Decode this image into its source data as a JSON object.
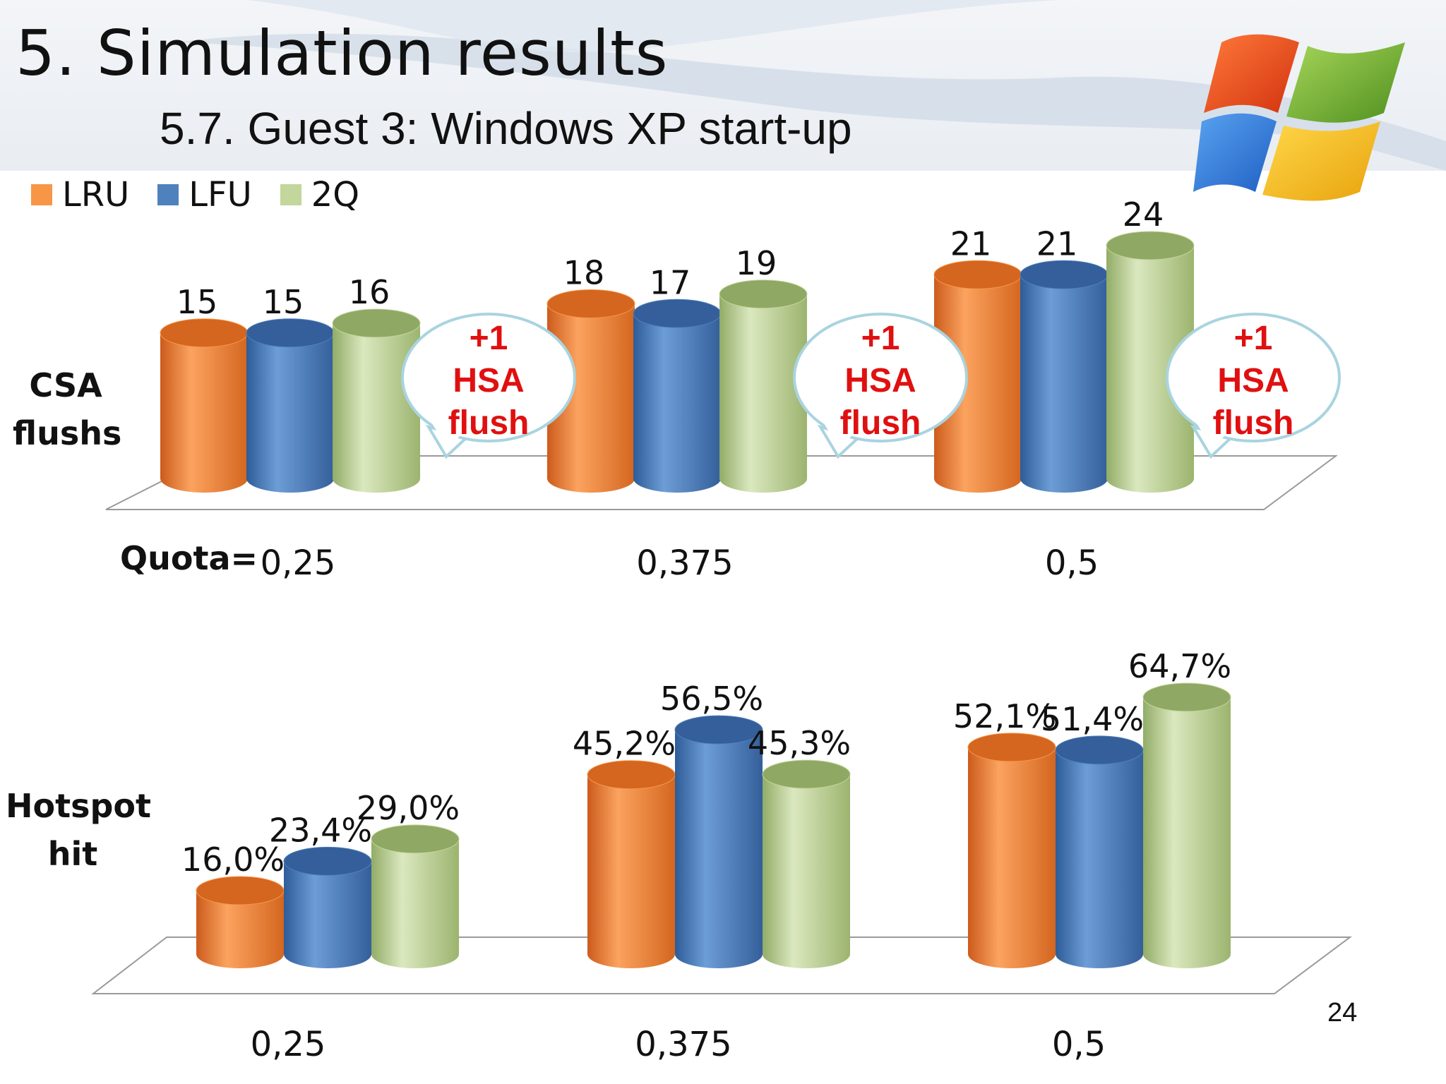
{
  "slide": {
    "title": "5. Simulation results",
    "subtitle": "5.7. Guest 3: Windows XP start-up",
    "page_number": "24"
  },
  "legend": [
    {
      "label": "LRU",
      "color": "#f79646"
    },
    {
      "label": "LFU",
      "color": "#4f81bd"
    },
    {
      "label": "2Q",
      "color": "#c3d69b"
    }
  ],
  "labels": {
    "csa": "CSA flushs",
    "hotspot": "Hotspot hit",
    "quota": "Quota="
  },
  "callouts": [
    "+1",
    "HSA",
    "flush"
  ],
  "chart_data": [
    {
      "type": "bar",
      "categories": [
        "0,25",
        "0,375",
        "0,5"
      ],
      "series": [
        {
          "name": "LRU",
          "values": [
            15,
            18,
            21
          ],
          "labels": [
            "15",
            "18",
            "21"
          ]
        },
        {
          "name": "LFU",
          "values": [
            15,
            17,
            21
          ],
          "labels": [
            "15",
            "17",
            "21"
          ]
        },
        {
          "name": "2Q",
          "values": [
            16,
            19,
            24
          ],
          "labels": [
            "16",
            "19",
            "24"
          ]
        }
      ],
      "ylabel": "CSA flushs",
      "ylim": [
        0,
        24
      ],
      "grid": false,
      "annotations": [
        "+1 HSA flush",
        "+1 HSA flush",
        "+1 HSA flush"
      ]
    },
    {
      "type": "bar",
      "categories": [
        "0,25",
        "0,375",
        "0,5"
      ],
      "series": [
        {
          "name": "LRU",
          "values": [
            16.0,
            45.2,
            52.1
          ],
          "labels": [
            "16,0%",
            "45,2%",
            "52,1%"
          ]
        },
        {
          "name": "LFU",
          "values": [
            23.4,
            56.5,
            51.4
          ],
          "labels": [
            "23,4%",
            "56,5%",
            "51,4%"
          ]
        },
        {
          "name": "2Q",
          "values": [
            29.0,
            45.3,
            64.7
          ],
          "labels": [
            "29,0%",
            "45,3%",
            "64,7%"
          ]
        }
      ],
      "ylabel": "Hotspot hit",
      "ylim": [
        0,
        64.7
      ],
      "grid": false
    }
  ]
}
